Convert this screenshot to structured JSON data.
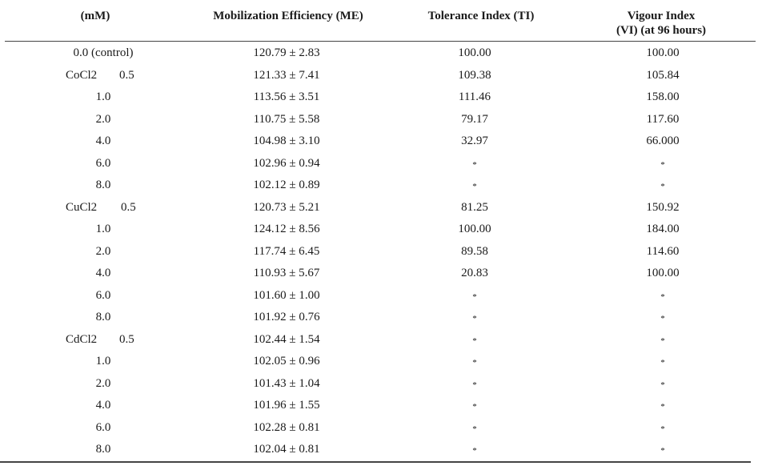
{
  "headers": {
    "concentration": "(mM)",
    "me": "Mobilization Efficiency (ME)",
    "ti": "Tolerance Index (TI)",
    "vi_line1": "Vigour Index",
    "vi_line2": "(VI) (at 96 hours)"
  },
  "rows": [
    {
      "conc": "0.0 (control)",
      "me": "120.79 ± 2.83",
      "ti": "100.00",
      "vi": "100.00"
    },
    {
      "metal": "CoCl2",
      "conc": "0.5",
      "me": "121.33 ± 7.41",
      "ti": "109.38",
      "vi": "105.84"
    },
    {
      "conc": "1.0",
      "me": "113.56 ± 3.51",
      "ti": "111.46",
      "vi": "158.00"
    },
    {
      "conc": "2.0",
      "me": "110.75 ± 5.58",
      "ti": "79.17",
      "vi": "117.60"
    },
    {
      "conc": "4.0",
      "me": "104.98 ± 3.10",
      "ti": "32.97",
      "vi": "66.000"
    },
    {
      "conc": "6.0",
      "me": "102.96 ± 0.94",
      "ti": "*",
      "vi": "*"
    },
    {
      "conc": "8.0",
      "me": "102.12 ± 0.89",
      "ti": "*",
      "vi": "*"
    },
    {
      "metal": "CuCl2",
      "conc": "0.5",
      "me": "120.73 ± 5.21",
      "ti": "81.25",
      "vi": "150.92"
    },
    {
      "conc": "1.0",
      "me": "124.12 ± 8.56",
      "ti": "100.00",
      "vi": "184.00"
    },
    {
      "conc": "2.0",
      "me": "117.74 ± 6.45",
      "ti": "89.58",
      "vi": "114.60"
    },
    {
      "conc": "4.0",
      "me": "110.93 ± 5.67",
      "ti": "20.83",
      "vi": "100.00"
    },
    {
      "conc": "6.0",
      "me": "101.60 ± 1.00",
      "ti": "*",
      "vi": "*"
    },
    {
      "conc": "8.0",
      "me": "101.92 ± 0.76",
      "ti": "*",
      "vi": "*"
    },
    {
      "metal": "CdCl2",
      "conc": "0.5",
      "me": "102.44 ± 1.54",
      "ti": "*",
      "vi": "*"
    },
    {
      "conc": "1.0",
      "me": "102.05 ± 0.96",
      "ti": "*",
      "vi": "*"
    },
    {
      "conc": "2.0",
      "me": "101.43 ± 1.04",
      "ti": "*",
      "vi": "*"
    },
    {
      "conc": "4.0",
      "me": "101.96 ± 1.55",
      "ti": "*",
      "vi": "*"
    },
    {
      "conc": "6.0",
      "me": "102.28 ± 0.81",
      "ti": "*",
      "vi": "*"
    },
    {
      "conc": "8.0",
      "me": "102.04 ± 0.81",
      "ti": "*",
      "vi": "*"
    }
  ]
}
